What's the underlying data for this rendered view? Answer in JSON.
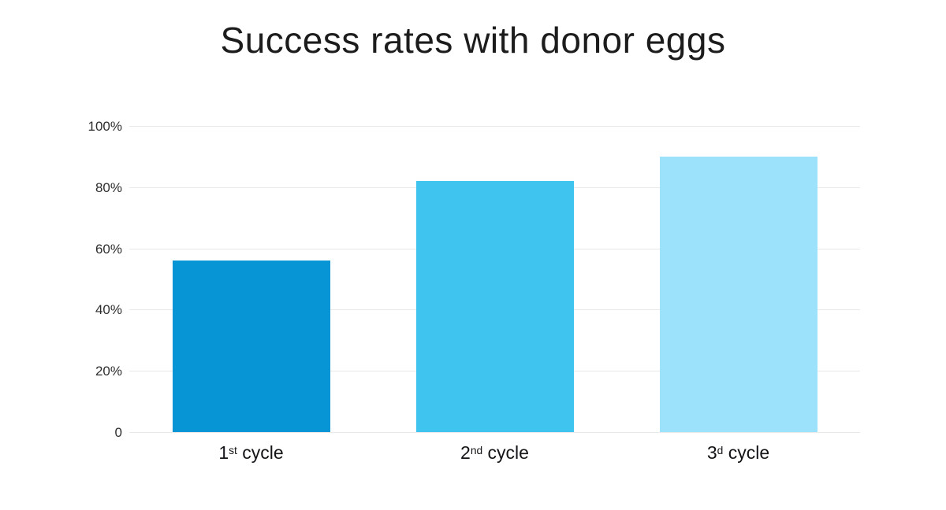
{
  "title": "Success rates with donor eggs",
  "colors": {
    "background": "#ffffff",
    "title_text": "#1c1c1c",
    "gridline": "#e9e9e9",
    "ytick_text": "#2e2e2e",
    "xtick_text": "#141418"
  },
  "chart_data": {
    "type": "bar",
    "title": "Success rates with donor eggs",
    "xlabel": "",
    "ylabel": "",
    "ylim": [
      0,
      100
    ],
    "grid": true,
    "legend": false,
    "categories": [
      {
        "text": "1st cycle",
        "prefix": "1",
        "sup": "st",
        "suffix": " cycle"
      },
      {
        "text": "2nd cycle",
        "prefix": "2",
        "sup": "nd",
        "suffix": " cycle"
      },
      {
        "text": "3d cycle",
        "prefix": "3",
        "sup": "d",
        "suffix": " cycle"
      }
    ],
    "values": [
      56,
      82,
      90
    ],
    "bar_colors": [
      "#0795d6",
      "#3fc4ef",
      "#9ce2fa"
    ],
    "yticks": [
      {
        "value": 100,
        "label": "100%"
      },
      {
        "value": 80,
        "label": "80%"
      },
      {
        "value": 60,
        "label": "60%"
      },
      {
        "value": 40,
        "label": "40%"
      },
      {
        "value": 20,
        "label": "20%"
      },
      {
        "value": 0,
        "label": "0"
      }
    ]
  }
}
